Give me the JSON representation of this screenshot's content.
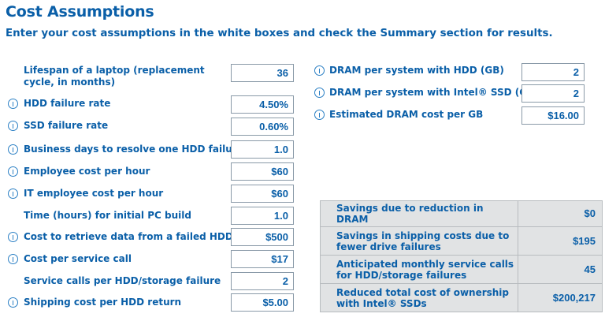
{
  "header": {
    "title": "Cost Assumptions",
    "subtitle": "Enter your cost assumptions in the white boxes and check the Summary section for results."
  },
  "left_inputs": [
    {
      "label": "Lifespan of a laptop (replacement cycle, in months)",
      "value": "36",
      "info": false
    },
    {
      "label": "HDD failure rate",
      "value": "4.50%",
      "info": true
    },
    {
      "label": "SSD failure rate",
      "value": "0.60%",
      "info": true
    },
    {
      "label": "Business days to resolve one HDD failure",
      "value": "1.0",
      "info": true
    },
    {
      "label": "Employee cost per hour",
      "value": "$60",
      "info": true
    },
    {
      "label": "IT employee cost per hour",
      "value": "$60",
      "info": true
    },
    {
      "label": "Time (hours) for initial PC build",
      "value": "1.0",
      "info": false
    },
    {
      "label": "Cost to retrieve data from a failed HDD",
      "value": "$500",
      "info": true
    },
    {
      "label": "Cost per service call",
      "value": "$17",
      "info": true
    },
    {
      "label": "Service calls per HDD/storage failure",
      "value": "2",
      "info": false
    },
    {
      "label": "Shipping cost per HDD return",
      "value": "$5.00",
      "info": true
    }
  ],
  "right_inputs": [
    {
      "label": "DRAM per system with HDD (GB)",
      "value": "2"
    },
    {
      "label": "DRAM per system with Intel® SSD (GB)",
      "value": "2"
    },
    {
      "label": "Estimated DRAM cost per GB",
      "value": "$16.00"
    }
  ],
  "summary": [
    {
      "label": "Savings due to reduction in DRAM",
      "value": "$0"
    },
    {
      "label": "Savings in shipping costs due to fewer drive failures",
      "value": "$195"
    },
    {
      "label": "Anticipated monthly service calls for HDD/storage failures",
      "value": "45"
    },
    {
      "label": "Reduced total cost of ownership with Intel® SSDs",
      "value": "$200,217"
    }
  ]
}
